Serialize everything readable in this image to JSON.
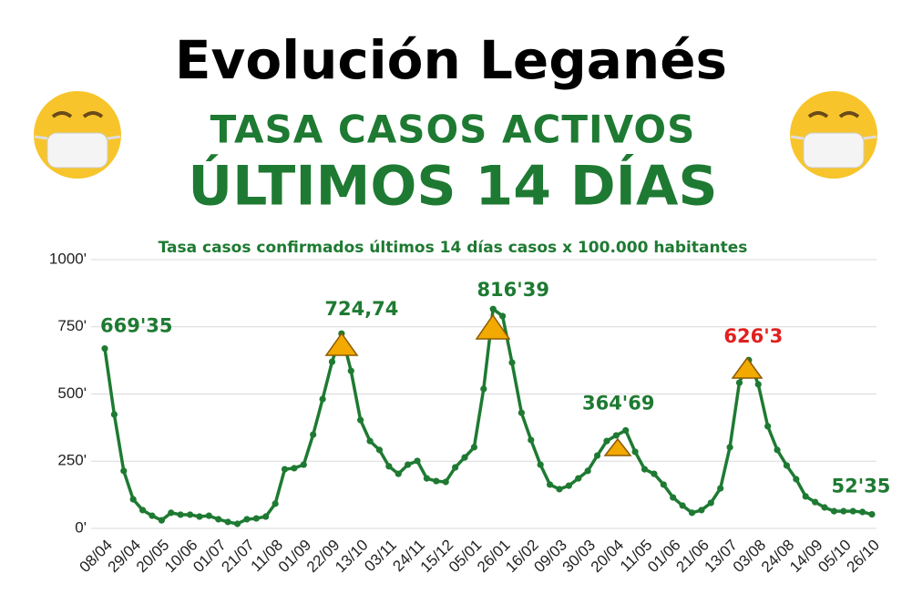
{
  "chart_data": {
    "type": "line",
    "title": "Evolución Leganés",
    "subtitle": "TASA CASOS ACTIVOS",
    "subtitle2": "ÚLTIMOS 14 DÍAS",
    "chart_title": "Tasa casos confirmados últimos 14 días  casos x 100.000 habitantes",
    "categories": [
      "08/04",
      null,
      null,
      "29/04",
      null,
      null,
      "20/05",
      null,
      null,
      "10/06",
      null,
      null,
      "01/07",
      null,
      null,
      "21/07",
      null,
      null,
      "11/08",
      null,
      null,
      "01/09",
      null,
      null,
      "22/09",
      null,
      null,
      "13/10",
      null,
      null,
      "03/11",
      null,
      null,
      "24/11",
      null,
      null,
      "15/12",
      null,
      null,
      "05/01",
      null,
      null,
      "26/01",
      null,
      null,
      "16/02",
      null,
      null,
      "09/03",
      null,
      null,
      "30/03",
      null,
      null,
      "20/04",
      null,
      null,
      "11/05",
      null,
      null,
      "01/06",
      null,
      null,
      "21/06",
      null,
      null,
      "13/07",
      null,
      null,
      "03/08",
      null,
      null,
      "24/08",
      null,
      null,
      "14/09",
      null,
      null,
      "05/10",
      null,
      null,
      "26/10"
    ],
    "series": [
      {
        "name": null,
        "color": "#1e7a32",
        "values": [
          669.35,
          424,
          214,
          108,
          68,
          47,
          30,
          58,
          51,
          51,
          44,
          47,
          34,
          24,
          17,
          34,
          37,
          44,
          92,
          220,
          224,
          237,
          349,
          481,
          620,
          724.74,
          586,
          403,
          325,
          292,
          231,
          203,
          237,
          251,
          186,
          176,
          173,
          227,
          264,
          302,
          519,
          816.39,
          790,
          617,
          430,
          329,
          237,
          163,
          146,
          159,
          186,
          214,
          271,
          325,
          346,
          364.69,
          285,
          220,
          203,
          163,
          115,
          85,
          58,
          68,
          95,
          149,
          302,
          542,
          626.3,
          536,
          380,
          292,
          234,
          183,
          119,
          98,
          78,
          64,
          64,
          64,
          61,
          52.35
        ],
        "value_labels": [
          "669'35",
          null,
          null,
          null,
          null,
          null,
          null,
          null,
          null,
          null,
          null,
          null,
          null,
          null,
          null,
          null,
          null,
          null,
          null,
          null,
          null,
          null,
          null,
          null,
          null,
          "724,74",
          null,
          null,
          null,
          null,
          null,
          null,
          null,
          null,
          null,
          null,
          null,
          null,
          null,
          null,
          null,
          "816'39",
          null,
          null,
          null,
          null,
          null,
          null,
          null,
          null,
          null,
          null,
          null,
          null,
          null,
          "364'69",
          null,
          null,
          null,
          null,
          null,
          null,
          null,
          null,
          null,
          null,
          null,
          null,
          "626'3",
          null,
          null,
          null,
          null,
          null,
          null,
          null,
          null,
          null,
          null,
          null,
          null,
          "52'35"
        ],
        "value_label_colors": [
          "#1e7a32",
          null,
          null,
          null,
          null,
          null,
          null,
          null,
          null,
          null,
          null,
          null,
          null,
          null,
          null,
          null,
          null,
          null,
          null,
          null,
          null,
          null,
          null,
          null,
          null,
          "#1e7a32",
          null,
          null,
          null,
          null,
          null,
          null,
          null,
          null,
          null,
          null,
          null,
          null,
          null,
          null,
          null,
          "#1e7a32",
          null,
          null,
          null,
          null,
          null,
          null,
          null,
          null,
          null,
          null,
          null,
          null,
          null,
          "#1e7a32",
          null,
          null,
          null,
          null,
          null,
          null,
          null,
          null,
          null,
          null,
          null,
          null,
          "#e0201f",
          null,
          null,
          null,
          null,
          null,
          null,
          null,
          null,
          null,
          null,
          null,
          null,
          "#1e7a32"
        ]
      }
    ],
    "ylim": [
      0,
      1000
    ],
    "yticks": [
      {
        "value": 0,
        "label": "0'"
      },
      {
        "value": 250,
        "label": "250'"
      },
      {
        "value": 500,
        "label": "500'"
      },
      {
        "value": 750,
        "label": "750'"
      },
      {
        "value": 1000,
        "label": "1000'"
      }
    ],
    "grid": true
  }
}
